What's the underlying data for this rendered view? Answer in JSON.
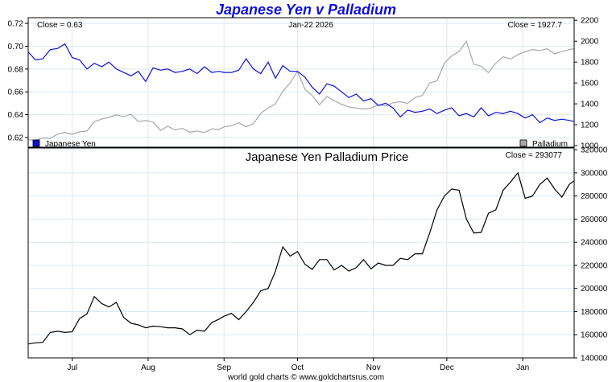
{
  "title": "Japanese Yen v Palladium",
  "footer": "world gold charts © www.goldchartsrus.com",
  "colors": {
    "yen": "#1010d8",
    "palladium": "#a8a8a8",
    "ratio": "#000000",
    "grid": "#dde8f2",
    "title": "#1010d8"
  },
  "chart_data": [
    {
      "type": "line",
      "panel": "top",
      "date_label": "Jan-22  2026",
      "left_annotation": "Close = 0.63",
      "right_annotation": "Close = 1927.7",
      "y_left_ticks": [
        "0.72",
        "0.70",
        "0.68",
        "0.66",
        "0.64",
        "0.62"
      ],
      "y_right_ticks": [
        "2200",
        "2000",
        "1800",
        "1600",
        "1400",
        "1200",
        "1000"
      ],
      "ylim_left": [
        0.6115,
        0.725
      ],
      "ylim_right": [
        985,
        2225
      ],
      "legend": [
        {
          "name": "Japanese Yen",
          "placement": "bottom-left"
        },
        {
          "name": "Palladium",
          "placement": "bottom-right"
        }
      ],
      "x_months": [
        "Jul",
        "Aug",
        "Sep",
        "Oct",
        "Nov",
        "Dec",
        "Jan"
      ],
      "x_month_days": [
        18,
        49,
        80,
        110,
        141,
        171,
        202
      ],
      "x_domain_days": [
        0,
        223
      ],
      "series": [
        {
          "name": "Japanese Yen",
          "color": "#1010d8",
          "x": [
            0,
            3,
            6,
            9,
            12,
            15,
            18,
            21,
            24,
            27,
            30,
            33,
            36,
            39,
            42,
            45,
            48,
            51,
            54,
            57,
            60,
            63,
            66,
            69,
            72,
            75,
            78,
            80,
            83,
            86,
            89,
            92,
            95,
            98,
            101,
            104,
            107,
            110,
            113,
            116,
            119,
            122,
            125,
            128,
            131,
            134,
            137,
            140,
            143,
            146,
            149,
            152,
            155,
            158,
            161,
            164,
            167,
            170,
            173,
            176,
            179,
            182,
            185,
            188,
            191,
            194,
            197,
            200,
            203,
            206,
            209,
            212,
            215,
            218,
            221,
            223
          ],
          "values": [
            0.695,
            0.688,
            0.689,
            0.697,
            0.698,
            0.702,
            0.69,
            0.688,
            0.68,
            0.685,
            0.682,
            0.686,
            0.68,
            0.677,
            0.674,
            0.678,
            0.669,
            0.681,
            0.679,
            0.68,
            0.677,
            0.678,
            0.68,
            0.676,
            0.682,
            0.677,
            0.678,
            0.677,
            0.677,
            0.679,
            0.689,
            0.68,
            0.676,
            0.686,
            0.672,
            0.683,
            0.678,
            0.678,
            0.673,
            0.664,
            0.658,
            0.667,
            0.665,
            0.66,
            0.655,
            0.658,
            0.652,
            0.654,
            0.648,
            0.65,
            0.646,
            0.638,
            0.644,
            0.642,
            0.643,
            0.645,
            0.641,
            0.644,
            0.646,
            0.639,
            0.641,
            0.638,
            0.646,
            0.639,
            0.642,
            0.641,
            0.643,
            0.641,
            0.637,
            0.64,
            0.633,
            0.637,
            0.635,
            0.636,
            0.635,
            0.634
          ]
        },
        {
          "name": "Palladium",
          "color": "#a8a8a8",
          "x": [
            0,
            3,
            6,
            9,
            12,
            15,
            18,
            21,
            24,
            27,
            30,
            33,
            36,
            39,
            42,
            45,
            48,
            51,
            54,
            57,
            60,
            63,
            66,
            69,
            72,
            75,
            78,
            80,
            83,
            86,
            89,
            92,
            95,
            98,
            101,
            104,
            107,
            110,
            113,
            116,
            119,
            122,
            125,
            128,
            131,
            134,
            137,
            140,
            143,
            146,
            149,
            152,
            155,
            158,
            161,
            164,
            167,
            170,
            173,
            176,
            179,
            182,
            185,
            188,
            191,
            194,
            197,
            200,
            203,
            206,
            209,
            212,
            215,
            218,
            221,
            223
          ],
          "values": [
            1055,
            1052,
            1072,
            1068,
            1110,
            1125,
            1108,
            1132,
            1140,
            1228,
            1255,
            1270,
            1295,
            1275,
            1300,
            1230,
            1240,
            1225,
            1145,
            1185,
            1150,
            1165,
            1128,
            1140,
            1125,
            1160,
            1155,
            1180,
            1190,
            1220,
            1180,
            1210,
            1310,
            1360,
            1400,
            1520,
            1600,
            1710,
            1540,
            1480,
            1390,
            1470,
            1430,
            1395,
            1370,
            1360,
            1350,
            1360,
            1390,
            1380,
            1410,
            1420,
            1405,
            1460,
            1480,
            1600,
            1620,
            1790,
            1860,
            1900,
            2000,
            1780,
            1760,
            1700,
            1790,
            1850,
            1830,
            1870,
            1900,
            1920,
            1910,
            1928,
            1880,
            1900,
            1920,
            1927.7
          ]
        }
      ]
    },
    {
      "type": "line",
      "panel": "bottom",
      "title": "Japanese Yen Palladium Price",
      "right_annotation": "Close = 293077",
      "y_right_ticks": [
        "320000",
        "300000",
        "280000",
        "260000",
        "240000",
        "220000",
        "200000",
        "180000",
        "160000",
        "140000"
      ],
      "ylim": [
        140000,
        321500
      ],
      "x_months": [
        "Jul",
        "Aug",
        "Sep",
        "Oct",
        "Nov",
        "Dec",
        "Jan"
      ],
      "x_month_days": [
        18,
        49,
        80,
        110,
        141,
        171,
        202
      ],
      "x_domain_days": [
        0,
        223
      ],
      "series": [
        {
          "name": "Japanese Yen Palladium Price",
          "color": "#000000",
          "x": [
            0,
            3,
            6,
            9,
            12,
            15,
            18,
            21,
            24,
            27,
            30,
            33,
            36,
            39,
            42,
            45,
            48,
            51,
            54,
            57,
            60,
            63,
            66,
            69,
            72,
            75,
            78,
            80,
            83,
            86,
            89,
            92,
            95,
            98,
            101,
            104,
            107,
            110,
            113,
            116,
            119,
            122,
            125,
            128,
            131,
            134,
            137,
            140,
            143,
            146,
            149,
            152,
            155,
            158,
            161,
            164,
            167,
            170,
            173,
            176,
            179,
            182,
            185,
            188,
            191,
            194,
            197,
            200,
            203,
            206,
            209,
            212,
            215,
            218,
            221,
            223
          ],
          "values": [
            152000,
            153000,
            153500,
            162000,
            163000,
            162000,
            162500,
            174000,
            178000,
            193000,
            187000,
            184000,
            188000,
            175000,
            170000,
            168500,
            166000,
            167500,
            167000,
            166000,
            166000,
            165000,
            160000,
            164000,
            163000,
            170500,
            173500,
            176000,
            178500,
            173000,
            180000,
            188000,
            198000,
            200000,
            215000,
            236000,
            228000,
            232000,
            221000,
            216500,
            225000,
            225000,
            216000,
            220000,
            215000,
            218000,
            225000,
            217000,
            222000,
            220000,
            220000,
            226000,
            225000,
            230000,
            230000,
            248000,
            268000,
            280000,
            286000,
            285000,
            260000,
            248000,
            248500,
            265000,
            268000,
            285000,
            292000,
            300000,
            278000,
            280000,
            290000,
            295500,
            286000,
            279000,
            290000,
            293077
          ]
        }
      ]
    }
  ]
}
